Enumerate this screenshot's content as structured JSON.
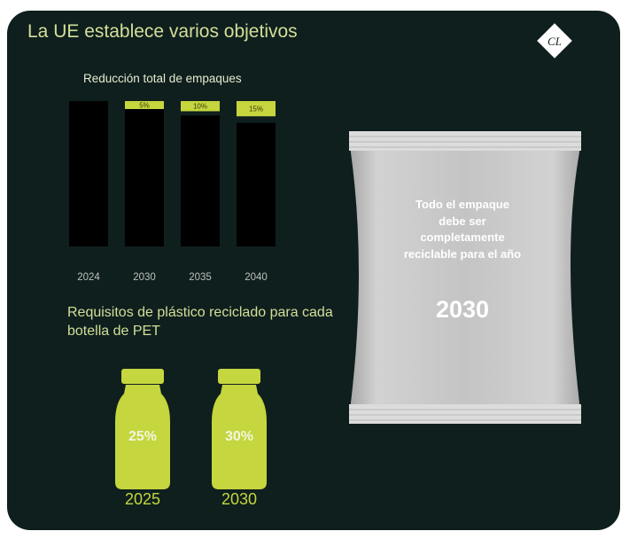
{
  "title": "La UE establece varios objetivos",
  "logo_text": "CL",
  "colors": {
    "background": "#0f1f1e",
    "accent": "#c5d63e",
    "bar": "#000000"
  },
  "packaging_chart": {
    "title": "Reducción total de empaques"
  },
  "chart_data": {
    "type": "bar",
    "title": "Reducción total de empaques",
    "categories": [
      "2024",
      "2030",
      "2035",
      "2040"
    ],
    "values": [
      0,
      5,
      10,
      15
    ],
    "value_labels": [
      "",
      "5%",
      "10%",
      "15%"
    ],
    "xlabel": "",
    "ylabel": "",
    "ylim": [
      0,
      100
    ],
    "grid": false
  },
  "pet_section": {
    "title": "Requisitos de plástico reciclado para cada botella de PET",
    "bottles": [
      {
        "percent": "25%",
        "year": "2025"
      },
      {
        "percent": "30%",
        "year": "2030"
      }
    ]
  },
  "bag": {
    "text": "Todo el empaque debe ser completamente reciclable para el año",
    "year": "2030"
  }
}
